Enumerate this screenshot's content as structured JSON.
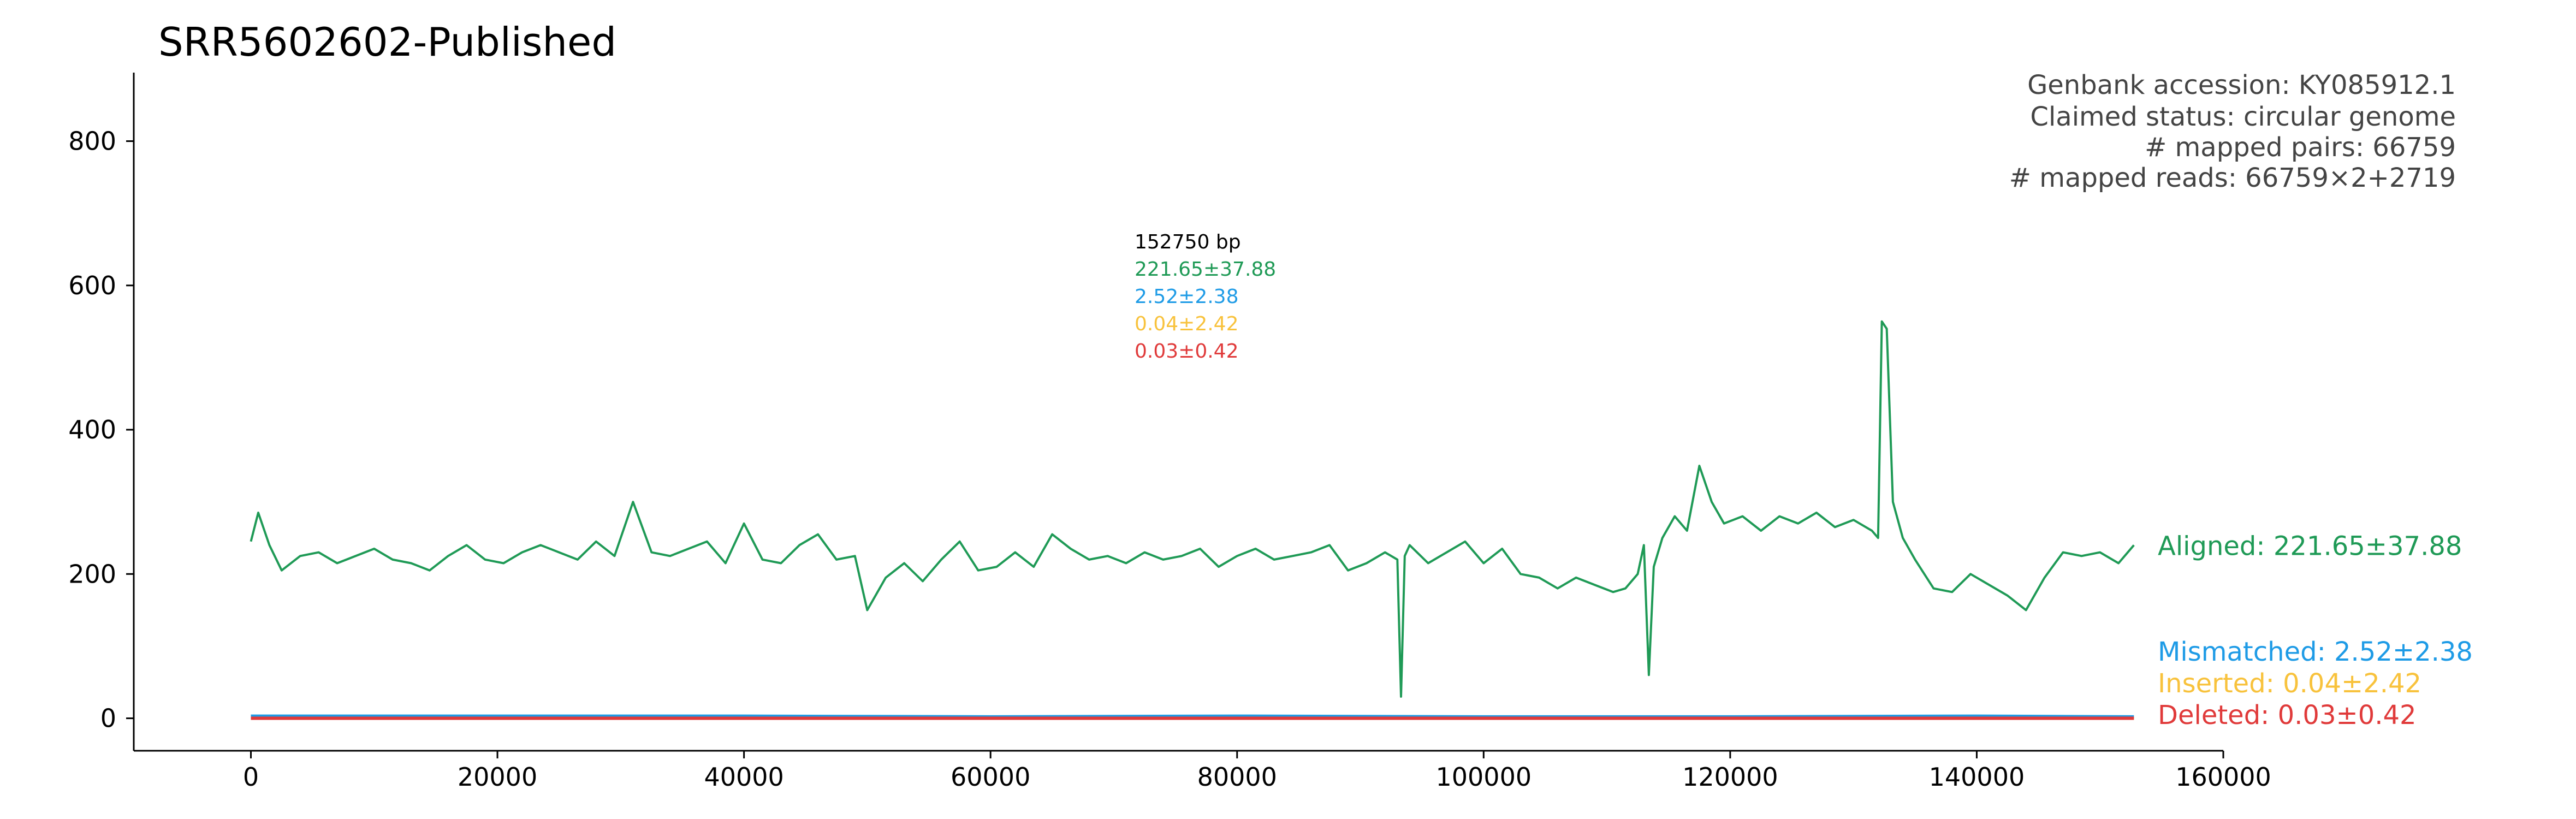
{
  "chart_data": {
    "type": "line",
    "title": "SRR5602602-Published",
    "xlabel": "",
    "ylabel": "",
    "xlim": [
      -9500,
      160000
    ],
    "ylim": [
      -45,
      895
    ],
    "x_ticks": [
      0,
      20000,
      40000,
      60000,
      80000,
      100000,
      120000,
      140000,
      160000
    ],
    "x_tick_labels": [
      "0",
      "20000",
      "40000",
      "60000",
      "80000",
      "100000",
      "120000",
      "140000",
      "160000"
    ],
    "y_ticks": [
      0,
      200,
      400,
      600,
      800
    ],
    "y_tick_labels": [
      "0",
      "200",
      "400",
      "600",
      "800"
    ],
    "grid": false,
    "info_box": {
      "lines": [
        "Genbank accession: KY085912.1",
        "Claimed status: circular genome",
        "# mapped pairs: 66759",
        "# mapped reads: 66759×2+2719"
      ]
    },
    "stats_box": {
      "length": "152750 bp",
      "aligned": "221.65±37.88",
      "mismatched": "2.52±2.38",
      "inserted": "0.04±2.42",
      "deleted": "0.03±0.42"
    },
    "series": [
      {
        "name": "Aligned: 221.65±37.88",
        "color": "#1f9a56",
        "x": [
          0,
          600,
          1500,
          2500,
          4000,
          5500,
          7000,
          8500,
          10000,
          11500,
          13000,
          14500,
          16000,
          17500,
          19000,
          20500,
          22000,
          23500,
          25000,
          26500,
          28000,
          29500,
          31000,
          32500,
          34000,
          35500,
          37000,
          38500,
          40000,
          41500,
          43000,
          44500,
          46000,
          47500,
          49000,
          50000,
          51500,
          53000,
          54500,
          56000,
          57500,
          59000,
          60500,
          62000,
          63500,
          65000,
          66500,
          68000,
          69500,
          71000,
          72500,
          74000,
          75500,
          77000,
          78500,
          80000,
          81500,
          83000,
          84500,
          86000,
          87500,
          89000,
          90500,
          92000,
          93000,
          93300,
          93600,
          94000,
          95500,
          97000,
          98500,
          100000,
          101500,
          103000,
          104500,
          106000,
          107500,
          109000,
          110500,
          111500,
          112500,
          113000,
          113400,
          113800,
          114500,
          115500,
          116500,
          117500,
          118500,
          119500,
          121000,
          122500,
          124000,
          125500,
          127000,
          128500,
          130000,
          131500,
          132000,
          132300,
          132700,
          133200,
          134000,
          135000,
          136500,
          138000,
          139500,
          141000,
          142500,
          144000,
          145500,
          147000,
          148500,
          150000,
          151500,
          152750
        ],
        "values": [
          245,
          285,
          240,
          205,
          225,
          230,
          215,
          225,
          235,
          220,
          215,
          205,
          225,
          240,
          220,
          215,
          230,
          240,
          230,
          220,
          245,
          225,
          300,
          230,
          225,
          235,
          245,
          215,
          270,
          220,
          215,
          240,
          255,
          220,
          225,
          150,
          195,
          215,
          190,
          220,
          245,
          205,
          210,
          230,
          210,
          255,
          235,
          220,
          225,
          215,
          230,
          220,
          225,
          235,
          210,
          225,
          235,
          220,
          225,
          230,
          240,
          205,
          215,
          230,
          220,
          30,
          225,
          240,
          215,
          230,
          245,
          215,
          235,
          200,
          195,
          180,
          195,
          185,
          175,
          180,
          200,
          240,
          60,
          210,
          250,
          280,
          260,
          350,
          300,
          270,
          280,
          260,
          280,
          270,
          285,
          265,
          275,
          260,
          250,
          550,
          540,
          300,
          250,
          220,
          180,
          175,
          200,
          185,
          170,
          150,
          195,
          230,
          225,
          230,
          215,
          240
        ]
      },
      {
        "name": "Mismatched: 2.52±2.38",
        "color": "#1e9be6",
        "x": [
          0,
          20000,
          40000,
          60000,
          80000,
          100000,
          120000,
          140000,
          152750
        ],
        "values": [
          3,
          3,
          3,
          2,
          3,
          2,
          2,
          3,
          2
        ]
      },
      {
        "name": "Inserted: 0.04±2.42",
        "color": "#f8c23c",
        "x": [
          0,
          152750
        ],
        "values": [
          0.04,
          0.04
        ]
      },
      {
        "name": "Deleted: 0.03±0.42",
        "color": "#e03a3a",
        "x": [
          0,
          152750
        ],
        "values": [
          0.03,
          0.03
        ]
      }
    ]
  }
}
